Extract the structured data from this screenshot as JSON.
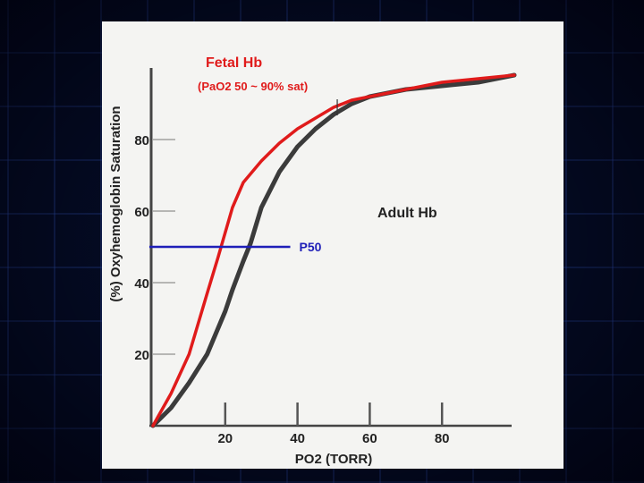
{
  "colors": {
    "fetal": "#e01b1b",
    "adult": "#3b3b3b",
    "p50": "#1f1fb8",
    "axis": "#444444"
  },
  "chart_data": {
    "type": "line",
    "title": "Fetal Hb",
    "subtitle": "(PaO2 50 ~ 90% sat)",
    "xlabel": "PO2 (TORR)",
    "ylabel": "(%) Oxyhemoglobin Saturation",
    "xlim": [
      0,
      100
    ],
    "ylim": [
      0,
      100
    ],
    "x_ticks": [
      20,
      40,
      60,
      80
    ],
    "y_ticks": [
      20,
      40,
      60,
      80
    ],
    "grid": false,
    "series": [
      {
        "name": "Fetal Hb",
        "x": [
          0,
          5,
          10,
          15,
          18,
          20,
          22,
          25,
          30,
          35,
          40,
          45,
          50,
          55,
          60,
          70,
          80,
          90,
          100
        ],
        "y": [
          0,
          9,
          20,
          37,
          47,
          54,
          61,
          68,
          74,
          79,
          83,
          86,
          89,
          91,
          92,
          94,
          96,
          97,
          98
        ]
      },
      {
        "name": "Adult Hb",
        "x": [
          0,
          5,
          10,
          15,
          20,
          22,
          25,
          27,
          30,
          35,
          40,
          45,
          50,
          55,
          60,
          70,
          80,
          90,
          100
        ],
        "y": [
          0,
          5,
          12,
          20,
          32,
          38,
          46,
          51,
          61,
          71,
          78,
          83,
          87,
          90,
          92,
          94,
          95,
          96,
          98
        ]
      }
    ],
    "annotations": {
      "adult_label": "Adult Hb",
      "p50_label": "P50",
      "p50_value": 50,
      "p50_x_range": [
        -1,
        38
      ]
    }
  }
}
